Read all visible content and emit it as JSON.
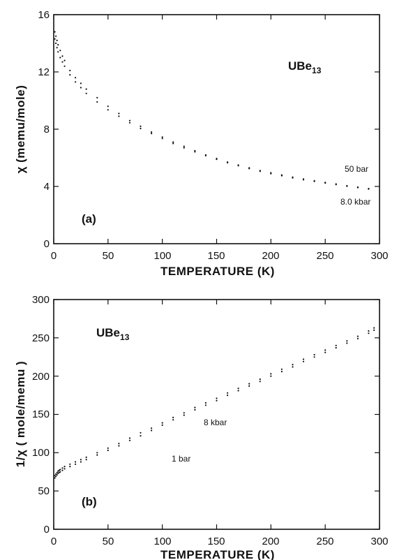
{
  "chart_data": [
    {
      "type": "scatter",
      "panel_label": "(a)",
      "compound": {
        "base": "UBe",
        "sub": "13"
      },
      "xlabel": "TEMPERATURE (K)",
      "ylabel": "χ (memu/mole)",
      "xlim": [
        0,
        300
      ],
      "ylim": [
        0,
        16
      ],
      "xticks": [
        0,
        50,
        100,
        150,
        200,
        250,
        300
      ],
      "yticks": [
        0,
        4,
        8,
        12,
        16
      ],
      "annotations": [
        "50 bar",
        "8.0 kbar"
      ],
      "series": [
        {
          "name": "50 bar",
          "x": [
            1,
            2,
            3,
            4,
            6,
            8,
            10,
            15,
            20,
            25,
            30,
            40,
            50,
            60,
            70,
            80,
            90,
            100,
            110,
            120,
            130,
            140,
            150,
            160,
            170,
            180,
            190,
            200,
            210,
            220,
            230,
            240,
            250,
            260,
            270,
            280,
            290
          ],
          "y": [
            14.8,
            14.5,
            14.2,
            13.9,
            13.5,
            13.1,
            12.8,
            12.1,
            11.6,
            11.2,
            10.8,
            10.2,
            9.6,
            9.1,
            8.6,
            8.2,
            7.8,
            7.45,
            7.1,
            6.8,
            6.5,
            6.2,
            5.95,
            5.7,
            5.5,
            5.3,
            5.1,
            4.95,
            4.8,
            4.65,
            4.52,
            4.4,
            4.28,
            4.17,
            4.05,
            3.95,
            3.85
          ]
        },
        {
          "name": "8.0 kbar",
          "x": [
            1,
            2,
            3,
            4,
            6,
            8,
            10,
            15,
            20,
            25,
            30,
            40,
            50,
            60,
            70,
            80,
            90,
            100,
            110,
            120,
            130,
            140,
            150,
            160,
            170,
            180,
            190,
            200,
            210,
            220,
            230,
            240,
            250,
            260,
            270,
            280,
            290
          ],
          "y": [
            14.3,
            14.0,
            13.7,
            13.4,
            13.0,
            12.7,
            12.4,
            11.8,
            11.3,
            10.9,
            10.5,
            9.9,
            9.35,
            8.9,
            8.45,
            8.05,
            7.7,
            7.35,
            7.0,
            6.7,
            6.42,
            6.15,
            5.9,
            5.66,
            5.45,
            5.25,
            5.06,
            4.9,
            4.75,
            4.6,
            4.47,
            4.35,
            4.24,
            4.13,
            4.02,
            3.92,
            3.82
          ]
        }
      ]
    },
    {
      "type": "scatter",
      "panel_label": "(b)",
      "compound": {
        "base": "UBe",
        "sub": "13"
      },
      "xlabel": "TEMPERATURE (K)",
      "ylabel": "1/χ ( mole/memu )",
      "xlim": [
        0,
        300
      ],
      "ylim": [
        0,
        300
      ],
      "xticks": [
        0,
        50,
        100,
        150,
        200,
        250,
        300
      ],
      "yticks": [
        0,
        50,
        100,
        150,
        200,
        250,
        300
      ],
      "annotations": [
        "8 kbar",
        "1 bar"
      ],
      "series": [
        {
          "name": "8 kbar",
          "x": [
            1,
            2,
            3,
            4,
            5,
            6,
            8,
            10,
            15,
            20,
            25,
            30,
            40,
            50,
            60,
            70,
            80,
            90,
            100,
            110,
            120,
            130,
            140,
            150,
            160,
            170,
            180,
            190,
            200,
            210,
            220,
            230,
            240,
            250,
            260,
            270,
            280,
            290,
            295
          ],
          "y": [
            70,
            72,
            74,
            76,
            77,
            78,
            80,
            82,
            85,
            88,
            91,
            94,
            100,
            106,
            112,
            119,
            126,
            132,
            139,
            146,
            152,
            159,
            165,
            171,
            178,
            184,
            190,
            196,
            203,
            209,
            215,
            222,
            228,
            234,
            240,
            246,
            252,
            259,
            263
          ]
        },
        {
          "name": "1 bar",
          "x": [
            1,
            2,
            3,
            4,
            5,
            6,
            8,
            10,
            15,
            20,
            25,
            30,
            40,
            50,
            60,
            70,
            80,
            90,
            100,
            110,
            120,
            130,
            140,
            150,
            160,
            170,
            180,
            190,
            200,
            210,
            220,
            230,
            240,
            250,
            260,
            270,
            280,
            290,
            295
          ],
          "y": [
            67,
            69,
            71,
            73,
            74,
            75,
            77,
            79,
            82,
            85,
            88,
            91,
            97,
            103,
            109,
            116,
            122,
            129,
            136,
            143,
            149,
            156,
            162,
            168,
            175,
            181,
            187,
            193,
            200,
            206,
            212,
            219,
            225,
            231,
            237,
            243,
            249,
            256,
            260
          ]
        }
      ]
    }
  ]
}
